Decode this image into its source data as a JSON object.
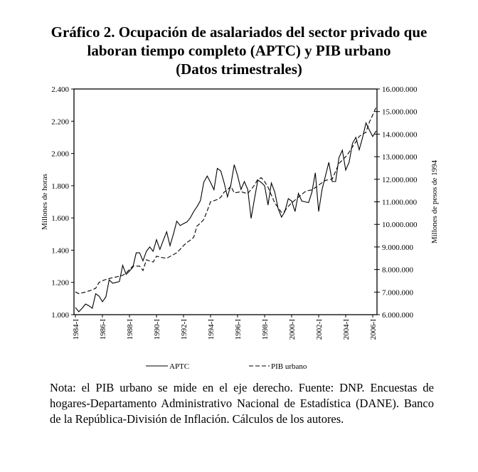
{
  "title_lines": [
    "Gráfico 2. Ocupación de asalariados del sector privado que",
    "laboran tiempo completo (APTC) y PIB urbano",
    "(Datos trimestrales)"
  ],
  "note": "Nota: el PIB urbano se mide en el eje derecho. Fuente: DNP. Encuestas de hogares-Departamento Administrativo Nacional de Estadística (DANE). Banco de la República-División de Inflación. Cálculos de los autores.",
  "chart_data": {
    "type": "line",
    "title": "Ocupación de asalariados del sector privado que laboran tiempo completo (APTC) y PIB urbano (Datos trimestrales)",
    "x_start": "1984-I",
    "frequency": "quarterly",
    "x_tick_labels": [
      "1984-I",
      "1986-I",
      "1988-I",
      "1990-I",
      "1992-I",
      "1994-I",
      "1996-I",
      "1998-I",
      "2000-I",
      "2002-I",
      "2004-I",
      "2006-I"
    ],
    "ylabel_left": "Millones de horas",
    "ylabel_right": "Millones de pesos de 1994",
    "ylim_left": [
      1000,
      2400
    ],
    "ylim_right": [
      6000000,
      16000000
    ],
    "y_left_ticks": [
      "1.000",
      "1.200",
      "1.400",
      "1.600",
      "1.800",
      "2.000",
      "2.200",
      "2.400"
    ],
    "y_right_ticks": [
      "6.000.000",
      "7.000.000",
      "8.000.000",
      "9.000.000",
      "10.000.000",
      "11.000.000",
      "12.000.000",
      "13.000.000",
      "14.000.000",
      "15.000.000",
      "16.000.000"
    ],
    "legend_position": "bottom",
    "series": [
      {
        "name": "APTC",
        "axis": "left",
        "style": "solid",
        "values": [
          1045,
          1018,
          1040,
          1066,
          1055,
          1040,
          1130,
          1115,
          1080,
          1110,
          1216,
          1195,
          1200,
          1205,
          1306,
          1250,
          1270,
          1295,
          1384,
          1384,
          1334,
          1393,
          1420,
          1393,
          1465,
          1405,
          1460,
          1514,
          1428,
          1500,
          1580,
          1553,
          1565,
          1575,
          1600,
          1640,
          1670,
          1708,
          1822,
          1860,
          1820,
          1775,
          1907,
          1892,
          1820,
          1731,
          1804,
          1930,
          1863,
          1777,
          1826,
          1777,
          1597,
          1720,
          1835,
          1820,
          1800,
          1680,
          1817,
          1760,
          1658,
          1605,
          1640,
          1720,
          1705,
          1640,
          1752,
          1705,
          1700,
          1695,
          1760,
          1880,
          1640,
          1777,
          1860,
          1945,
          1826,
          1826,
          1974,
          2020,
          1897,
          1945,
          2062,
          2100,
          2023,
          2100,
          2190,
          2145,
          2105,
          2140
        ]
      },
      {
        "name": "PIB urbano",
        "axis": "right",
        "style": "dashed",
        "values": [
          7010000,
          6930000,
          6970000,
          7000000,
          7050000,
          7100000,
          7170000,
          7430000,
          7500000,
          7560000,
          7600000,
          7640000,
          7670000,
          7700000,
          7740000,
          7850000,
          8000000,
          8150000,
          8150000,
          8150000,
          7960000,
          8430000,
          8380000,
          8330000,
          8590000,
          8550000,
          8520000,
          8500000,
          8580000,
          8660000,
          8740000,
          8900000,
          9060000,
          9200000,
          9300000,
          9430000,
          9930000,
          10050000,
          10220000,
          10600000,
          11000000,
          11050000,
          11100000,
          11200000,
          11430000,
          11530000,
          11690000,
          11400000,
          11420000,
          11450000,
          11400000,
          11370000,
          11550000,
          11740000,
          12000000,
          12070000,
          11900000,
          11650000,
          11300000,
          10950000,
          10750000,
          10530000,
          10600000,
          10800000,
          10950000,
          11080000,
          11210000,
          11330000,
          11450000,
          11500000,
          11530000,
          11630000,
          11740000,
          11850000,
          11950000,
          11980000,
          12000000,
          12350000,
          12700000,
          12850000,
          13000000,
          13200000,
          13440000,
          13650000,
          13900000,
          14000000,
          14080000,
          14530000,
          14850000,
          15200000
        ]
      }
    ]
  }
}
